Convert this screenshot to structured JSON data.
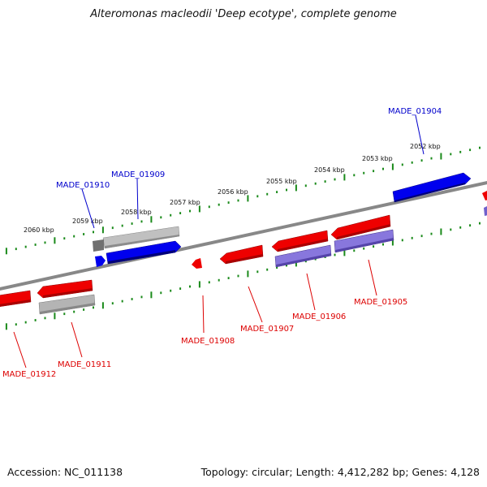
{
  "title": "Alteromonas macleodii 'Deep ecotype', complete genome",
  "footer": {
    "accession": "Accession: NC_011138",
    "summary": "Topology: circular; Length: 4,412,282 bp; Genes: 4,128"
  },
  "colors": {
    "forward_cds": "#0000ee",
    "forward_other": "#c0c0c0",
    "forward_dark": "#707070",
    "reverse_cds": "#ee0000",
    "reverse_pseudo": "#9988dd",
    "reverse_other": "#b4b4b4",
    "backbone": "#808080",
    "tick": "#1a8a1a",
    "forward_label": "#0000cc",
    "reverse_label": "#dd0000"
  },
  "kbp_labels": [
    "2052 kbp",
    "2053 kbp",
    "2054 kbp",
    "2055 kbp",
    "2056 kbp",
    "2057 kbp",
    "2058 kbp",
    "2059 kbp",
    "2060 kbp"
  ],
  "forward_labels": [
    "MADE_01904",
    "MADE_01909",
    "MADE_01910"
  ],
  "reverse_labels": [
    "MADE_01905",
    "MADE_01906",
    "MADE_01907",
    "MADE_01908",
    "MADE_01911",
    "MADE_01912"
  ]
}
